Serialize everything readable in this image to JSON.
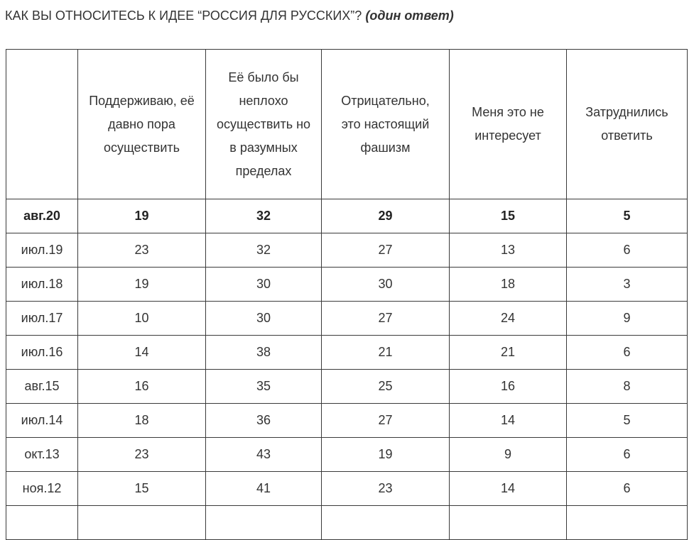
{
  "title": {
    "question": "КАК ВЫ ОТНОСИТЕСЬ К ИДЕЕ “РОССИЯ ДЛЯ РУССКИХ”?",
    "note": "(один ответ)"
  },
  "table": {
    "headers": [
      "",
      "Поддерживаю, её давно пора осуществить",
      "Её было бы неплохо осуществить но в разумных пределах",
      "Отрицательно, это настоящий фашизм",
      "Меня это не интересует",
      "Затруднились ответить"
    ],
    "rows": [
      [
        "авг.20",
        "19",
        "32",
        "29",
        "15",
        "5"
      ],
      [
        "июл.19",
        "23",
        "32",
        "27",
        "13",
        "6"
      ],
      [
        "июл.18",
        "19",
        "30",
        "30",
        "18",
        "3"
      ],
      [
        "июл.17",
        "10",
        "30",
        "27",
        "24",
        "9"
      ],
      [
        "июл.16",
        "14",
        "38",
        "21",
        "21",
        "6"
      ],
      [
        "авг.15",
        "16",
        "35",
        "25",
        "16",
        "8"
      ],
      [
        "июл.14",
        "18",
        "36",
        "27",
        "14",
        "5"
      ],
      [
        "окт.13",
        "23",
        "43",
        "19",
        "9",
        "6"
      ],
      [
        "ноя.12",
        "15",
        "41",
        "23",
        "14",
        "6"
      ]
    ]
  }
}
